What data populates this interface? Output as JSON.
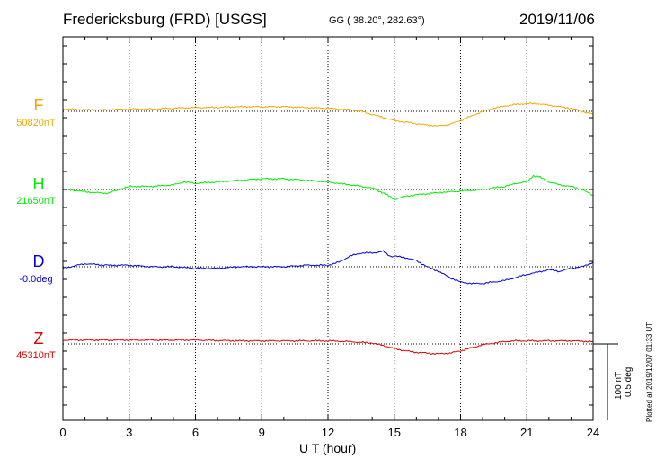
{
  "header": {
    "station": "Fredericksburg (FRD)  [USGS]",
    "coords": "GG ( 38.20°, 282.63°)",
    "date": "2019/11/06"
  },
  "footer": {
    "xlabel": "U T (hour)",
    "scale_line1": "100 nT",
    "scale_line2": "0.5 deg",
    "plotted": "Plotted at 2019/12/07 01:33 UT"
  },
  "chart_data": {
    "type": "line",
    "xlabel": "U T (hour)",
    "xlim": [
      0,
      24
    ],
    "x_ticks": [
      "0",
      "3",
      "6",
      "9",
      "12",
      "15",
      "18",
      "21",
      "24"
    ],
    "grid": "dotted vertical lines every 3 hours, dotted baseline per trace",
    "scale_bar": {
      "nT": 100,
      "deg": 0.5
    },
    "series": [
      {
        "name": "F",
        "baseline_label": "50820nT",
        "color": "#f0a800",
        "unit": "nT",
        "x": [
          0,
          1,
          2,
          3,
          4,
          5,
          6,
          7,
          8,
          9,
          10,
          11,
          12,
          13,
          13.5,
          14,
          14.5,
          15,
          15.5,
          16,
          16.5,
          17,
          17.5,
          18,
          18.5,
          19,
          19.5,
          20,
          20.5,
          21,
          21.5,
          22,
          22.5,
          23,
          23.5,
          24
        ],
        "y": [
          3,
          2,
          2,
          3,
          3,
          4,
          5,
          5,
          6,
          6,
          6,
          5,
          4,
          2,
          0,
          -4,
          -8,
          -12,
          -14,
          -16,
          -18,
          -19,
          -17,
          -12,
          -6,
          0,
          4,
          7,
          9,
          10,
          10,
          8,
          6,
          4,
          0,
          -4
        ]
      },
      {
        "name": "H",
        "baseline_label": "21650nT",
        "color": "#00ee00",
        "unit": "nT",
        "x": [
          0,
          0.5,
          1,
          2,
          3,
          4,
          5,
          5.5,
          6,
          7,
          8,
          9,
          10,
          11,
          12,
          13,
          14,
          14.3,
          14.6,
          15,
          15.5,
          16,
          17,
          18,
          19,
          20,
          20.5,
          21,
          21.3,
          21.6,
          22,
          22.5,
          23,
          23.5,
          24
        ],
        "y": [
          0,
          -1,
          -3,
          -5,
          4,
          4,
          6,
          10,
          8,
          10,
          12,
          14,
          14,
          12,
          10,
          6,
          2,
          -2,
          -6,
          -13,
          -9,
          -7,
          -4,
          -2,
          0,
          4,
          8,
          10,
          18,
          16,
          10,
          6,
          4,
          0,
          -8
        ]
      },
      {
        "name": "D",
        "baseline_label": "-0.0deg",
        "color": "#0000dd",
        "unit": "deg",
        "x": [
          0,
          1,
          2,
          3,
          4,
          5,
          6,
          7,
          8,
          9,
          10,
          11,
          12,
          12.5,
          13,
          13.5,
          14,
          14.5,
          14.8,
          15,
          15.5,
          16,
          16.5,
          17,
          17.5,
          18,
          18.5,
          19,
          19.5,
          20,
          21,
          22,
          22.5,
          23,
          23.5,
          24
        ],
        "y": [
          -0.01,
          0.02,
          0.01,
          0.01,
          0.0,
          0.0,
          -0.01,
          -0.01,
          0.0,
          0.0,
          0.0,
          0.01,
          0.01,
          0.03,
          0.07,
          0.09,
          0.09,
          0.1,
          0.07,
          0.07,
          0.06,
          0.04,
          0.0,
          -0.03,
          -0.07,
          -0.1,
          -0.11,
          -0.11,
          -0.1,
          -0.09,
          -0.05,
          -0.02,
          -0.03,
          -0.01,
          0.0,
          0.03
        ]
      },
      {
        "name": "Z",
        "baseline_label": "45310nT",
        "color": "#dd0000",
        "unit": "nT",
        "x": [
          0,
          2,
          4,
          6,
          8,
          10,
          12,
          13,
          14,
          14.5,
          15,
          15.5,
          16,
          16.5,
          17,
          17.5,
          18,
          18.5,
          19,
          19.5,
          20,
          20.5,
          21,
          22,
          23,
          24
        ],
        "y": [
          5,
          5,
          5,
          5,
          4,
          4,
          4,
          3,
          1,
          -2,
          -6,
          -9,
          -11,
          -12,
          -13,
          -12,
          -9,
          -5,
          -1,
          1,
          3,
          4,
          4,
          4,
          4,
          3
        ]
      }
    ]
  }
}
